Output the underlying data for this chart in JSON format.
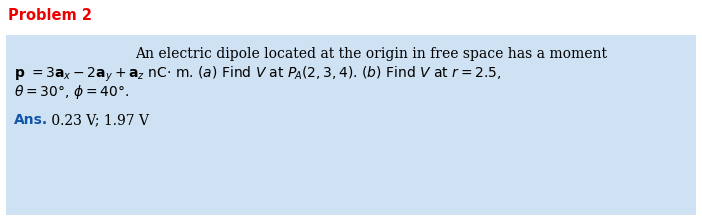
{
  "title": "Problem 2",
  "title_color": "#EE0000",
  "title_fontsize": 10.5,
  "box_bg_color": "#cfe2f3",
  "line1": "An electric dipole located at the origin in free space has a moment",
  "line2": "p = 3aₓ − 2aᵧ + aᵩ nC· m. (a) Find V at Pₐ(2, 3, 4). (b) Find V at r = 2.5,",
  "line3": "θ = 30°, ϕ = 40°.",
  "ans_label": "Ans.",
  "ans_label_color": "#1155AA",
  "ans_text": " 0.23 V; 1.97 V",
  "fig_width": 7.02,
  "fig_height": 2.23,
  "dpi": 100,
  "background_color": "#ffffff",
  "body_fontsize": 10.0
}
